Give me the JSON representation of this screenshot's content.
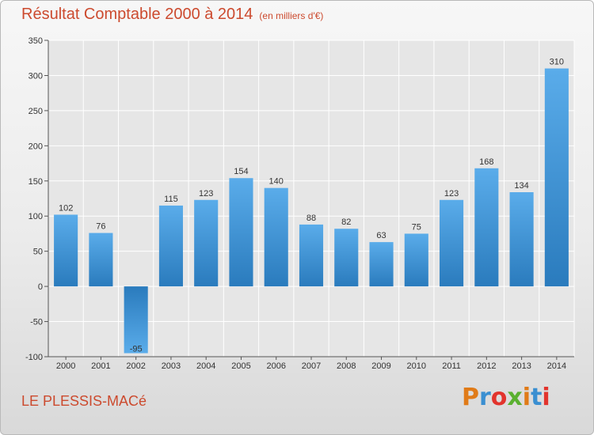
{
  "header": {
    "title": "Résultat Comptable 2000 à 2014",
    "unit": "(en milliers d'€)"
  },
  "footer": {
    "town": "LE PLESSIS-MACé",
    "logo": {
      "letters": [
        "P",
        "r",
        "o",
        "x",
        "i",
        "t",
        "i"
      ],
      "colors": [
        "#e07b18",
        "#3a8fd1",
        "#e2342d",
        "#5ab030",
        "#e07b18",
        "#3a8fd1",
        "#e2342d"
      ]
    }
  },
  "chart_data": {
    "type": "bar",
    "title": "Résultat Comptable 2000 à 2014",
    "subtitle": "(en milliers d'€)",
    "categories": [
      "2000",
      "2001",
      "2002",
      "2003",
      "2004",
      "2005",
      "2006",
      "2007",
      "2008",
      "2009",
      "2010",
      "2011",
      "2012",
      "2013",
      "2014"
    ],
    "values": [
      102,
      76,
      -95,
      115,
      123,
      154,
      140,
      88,
      82,
      63,
      75,
      123,
      168,
      134,
      310
    ],
    "ylim": [
      -100,
      350
    ],
    "yticks": [
      -100,
      -50,
      0,
      50,
      100,
      150,
      200,
      250,
      300,
      350
    ],
    "grid": true,
    "bar_color_top": "#5aacea",
    "bar_color_bottom": "#2a7bbd",
    "legend": "none"
  }
}
